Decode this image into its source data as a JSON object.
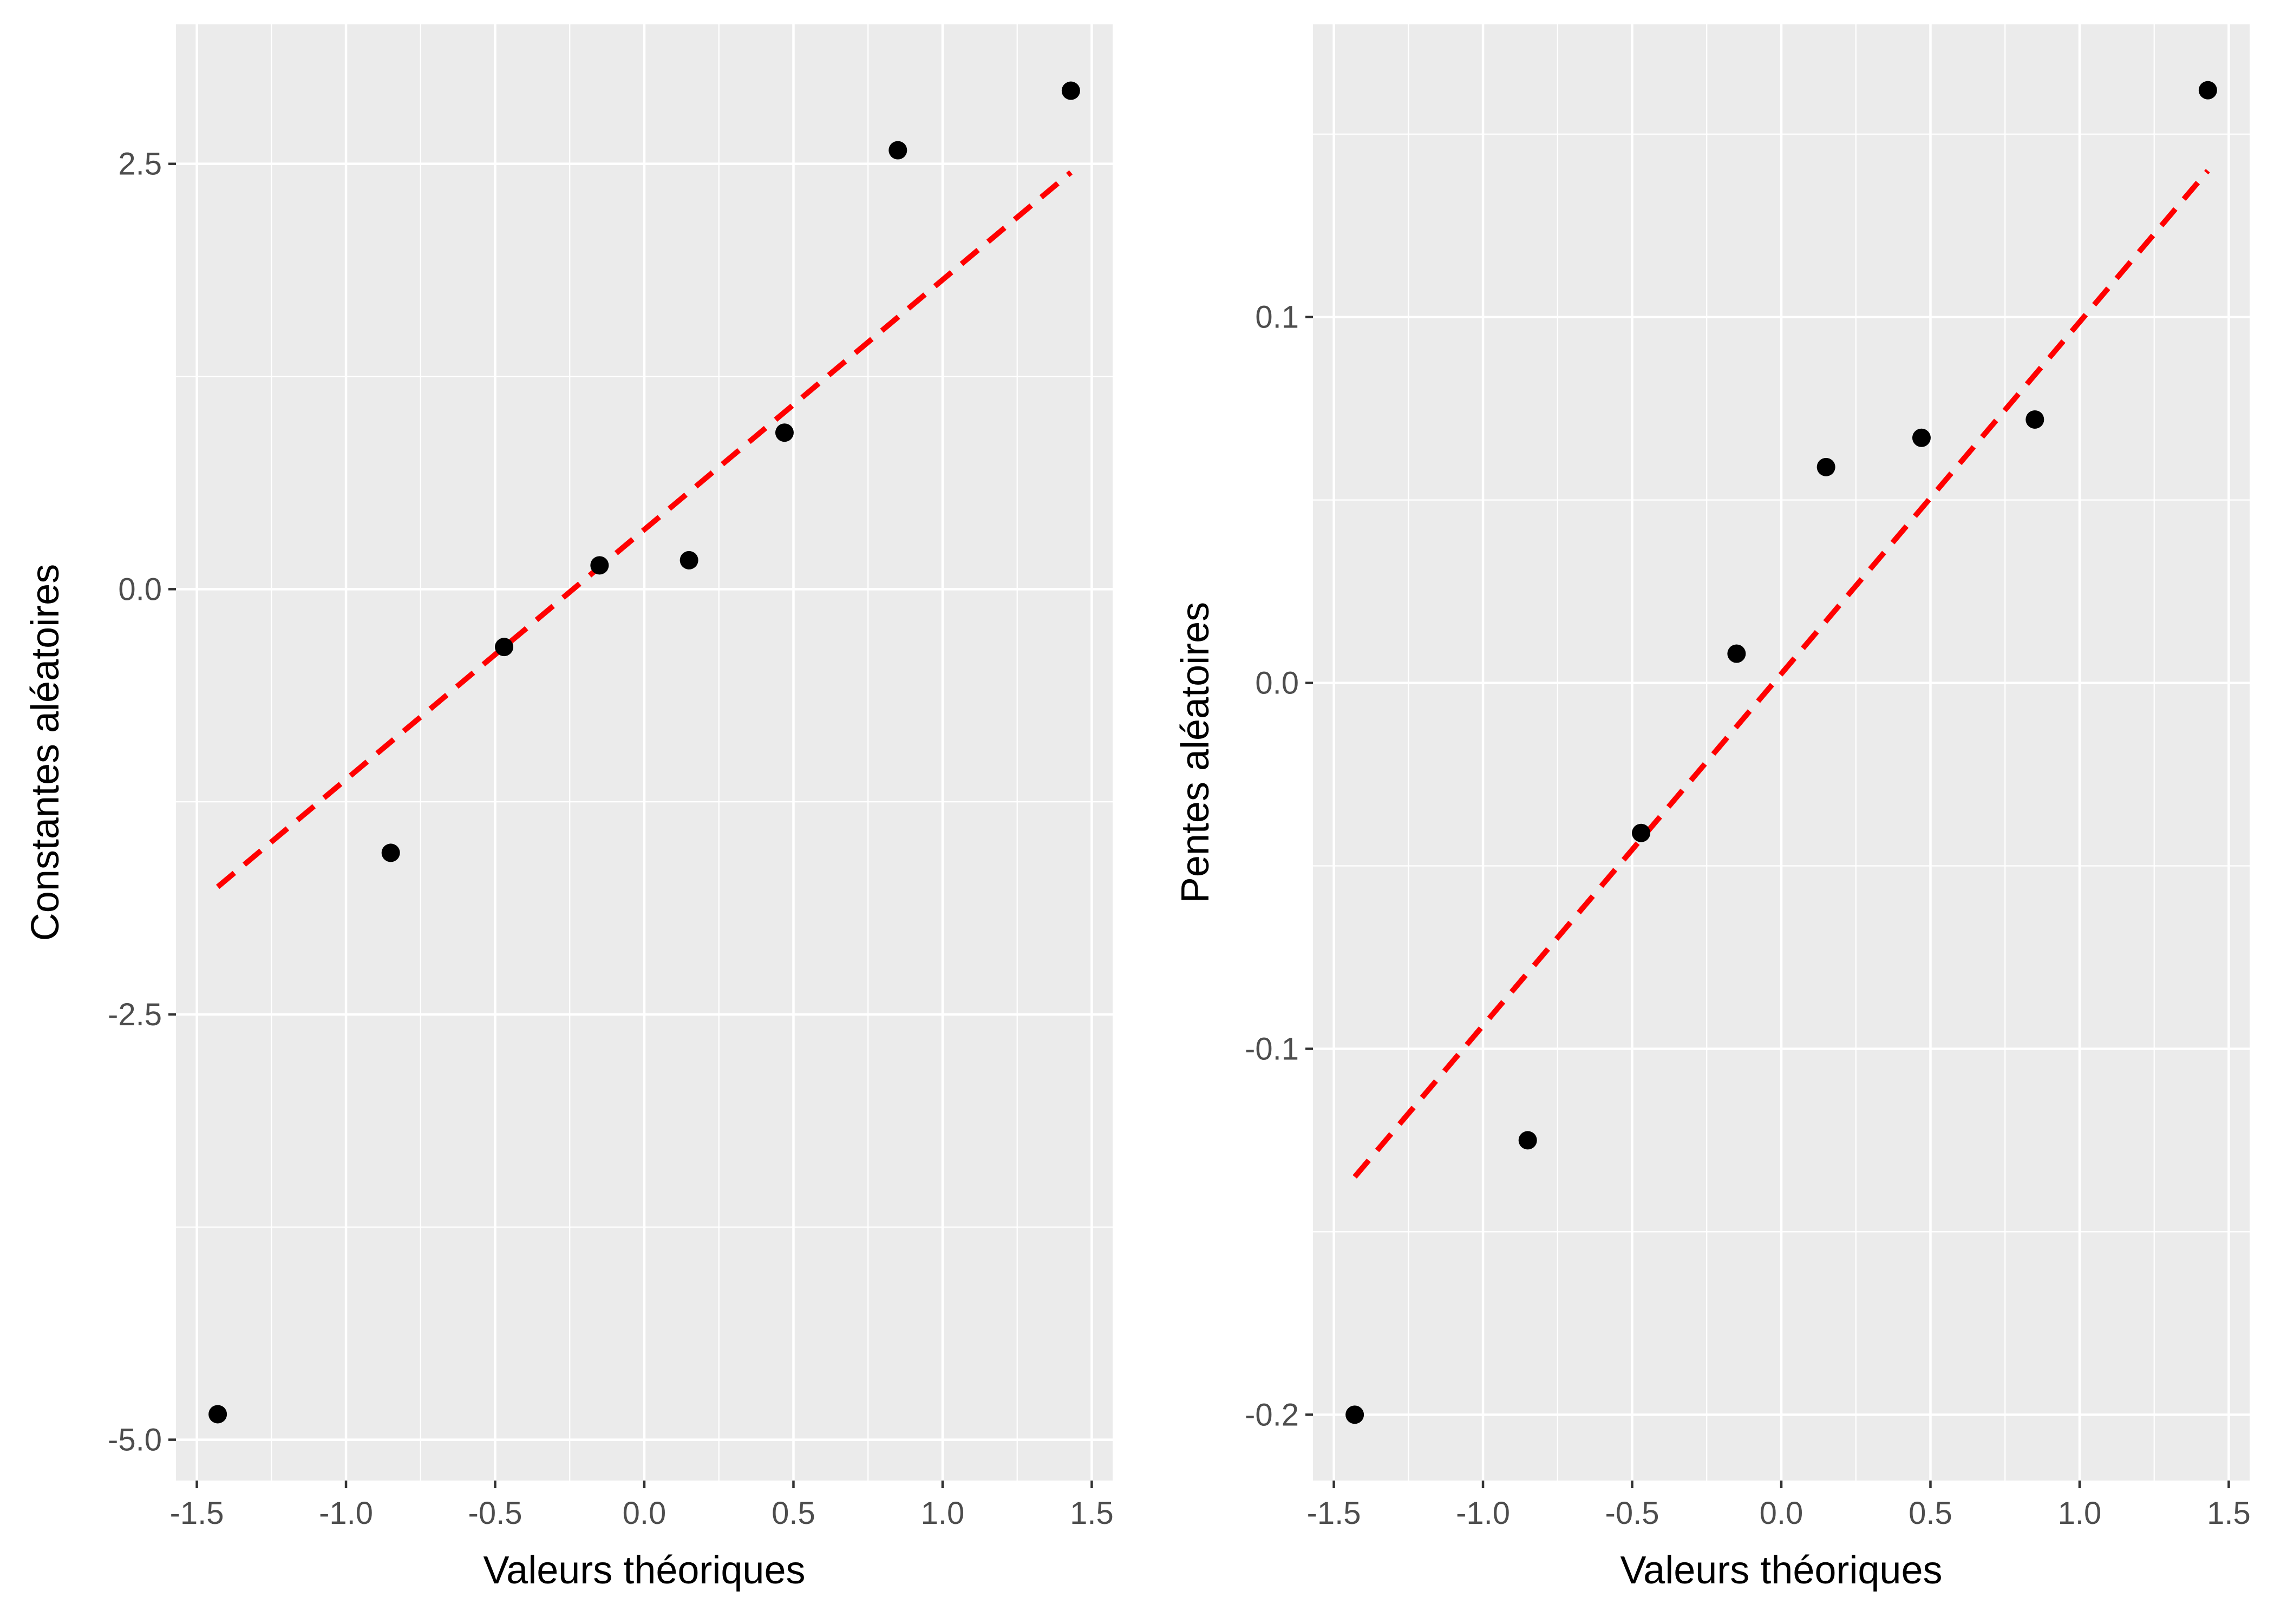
{
  "chart_data": [
    {
      "type": "scatter",
      "title": "",
      "xlabel": "Valeurs théoriques",
      "ylabel": "Constantes aléatoires",
      "xlim": [
        -1.57,
        1.57
      ],
      "ylim": [
        -5.24,
        3.32
      ],
      "xticks": [
        -1.5,
        -1.0,
        -0.5,
        0.0,
        0.5,
        1.0,
        1.5
      ],
      "xtick_labels": [
        "-1.5",
        "-1.0",
        "-0.5",
        "0.0",
        "0.5",
        "1.0",
        "1.5"
      ],
      "yticks": [
        -5.0,
        -2.5,
        0.0,
        2.5
      ],
      "ytick_labels": [
        "-5.0",
        "-2.5",
        "0.0",
        "2.5"
      ],
      "grid": true,
      "points": [
        {
          "x": -1.43,
          "y": -4.85
        },
        {
          "x": -0.85,
          "y": -1.55
        },
        {
          "x": -0.47,
          "y": -0.34
        },
        {
          "x": -0.15,
          "y": 0.14
        },
        {
          "x": 0.15,
          "y": 0.17
        },
        {
          "x": 0.47,
          "y": 0.92
        },
        {
          "x": 0.85,
          "y": 2.58
        },
        {
          "x": 1.43,
          "y": 2.93
        }
      ],
      "reference_line": {
        "x": [
          -1.43,
          1.43
        ],
        "y": [
          -1.75,
          2.45
        ],
        "color": "#FF0000",
        "style": "dashed"
      }
    },
    {
      "type": "scatter",
      "title": "",
      "xlabel": "Valeurs théoriques",
      "ylabel": "Pentes aléatoires",
      "xlim": [
        -1.57,
        1.57
      ],
      "ylim": [
        -0.218,
        0.18
      ],
      "xticks": [
        -1.5,
        -1.0,
        -0.5,
        0.0,
        0.5,
        1.0,
        1.5
      ],
      "xtick_labels": [
        "-1.5",
        "-1.0",
        "-0.5",
        "0.0",
        "0.5",
        "1.0",
        "1.5"
      ],
      "yticks": [
        -0.2,
        -0.1,
        0.0,
        0.1
      ],
      "ytick_labels": [
        "-0.2",
        "-0.1",
        "0.0",
        "0.1"
      ],
      "grid": true,
      "points": [
        {
          "x": -1.43,
          "y": -0.2
        },
        {
          "x": -0.85,
          "y": -0.125
        },
        {
          "x": -0.47,
          "y": -0.041
        },
        {
          "x": -0.15,
          "y": 0.008
        },
        {
          "x": 0.15,
          "y": 0.059
        },
        {
          "x": 0.47,
          "y": 0.067
        },
        {
          "x": 0.85,
          "y": 0.072
        },
        {
          "x": 1.43,
          "y": 0.162
        }
      ],
      "reference_line": {
        "x": [
          -1.43,
          1.43
        ],
        "y": [
          -0.135,
          0.14
        ],
        "color": "#FF0000",
        "style": "dashed"
      }
    }
  ]
}
